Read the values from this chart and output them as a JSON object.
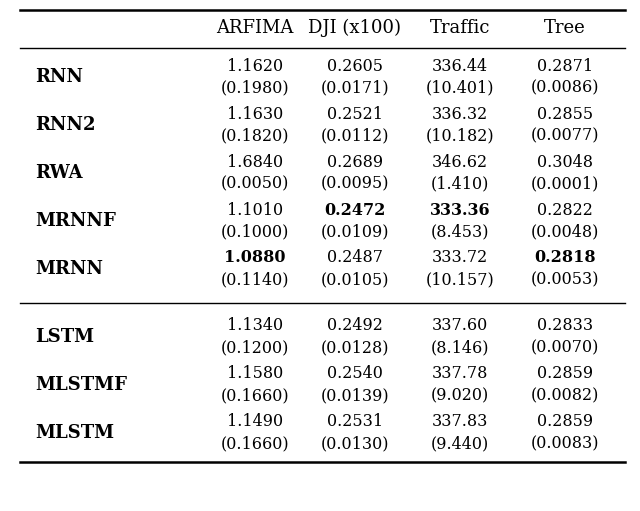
{
  "columns": [
    "ARFIMA",
    "DJI (x100)",
    "Traffic",
    "Tree"
  ],
  "rows": [
    {
      "name": "RNN",
      "values": [
        "1.1620",
        "0.2605",
        "336.44",
        "0.2871"
      ],
      "stds": [
        "(0.1980)",
        "(0.0171)",
        "(10.401)",
        "(0.0086)"
      ],
      "bold": [
        false,
        false,
        false,
        false
      ]
    },
    {
      "name": "RNN2",
      "values": [
        "1.1630",
        "0.2521",
        "336.32",
        "0.2855"
      ],
      "stds": [
        "(0.1820)",
        "(0.0112)",
        "(10.182)",
        "(0.0077)"
      ],
      "bold": [
        false,
        false,
        false,
        false
      ]
    },
    {
      "name": "RWA",
      "values": [
        "1.6840",
        "0.2689",
        "346.62",
        "0.3048"
      ],
      "stds": [
        "(0.0050)",
        "(0.0095)",
        "(1.410)",
        "(0.0001)"
      ],
      "bold": [
        false,
        false,
        false,
        false
      ]
    },
    {
      "name": "MRNNF",
      "values": [
        "1.1010",
        "0.2472",
        "333.36",
        "0.2822"
      ],
      "stds": [
        "(0.1000)",
        "(0.0109)",
        "(8.453)",
        "(0.0048)"
      ],
      "bold": [
        false,
        true,
        true,
        false
      ]
    },
    {
      "name": "MRNN",
      "values": [
        "1.0880",
        "0.2487",
        "333.72",
        "0.2818"
      ],
      "stds": [
        "(0.1140)",
        "(0.0105)",
        "(10.157)",
        "(0.0053)"
      ],
      "bold": [
        true,
        false,
        false,
        true
      ]
    },
    {
      "name": "LSTM",
      "values": [
        "1.1340",
        "0.2492",
        "337.60",
        "0.2833"
      ],
      "stds": [
        "(0.1200)",
        "(0.0128)",
        "(8.146)",
        "(0.0070)"
      ],
      "bold": [
        false,
        false,
        false,
        false
      ],
      "group_break": true
    },
    {
      "name": "MLSTMF",
      "values": [
        "1.1580",
        "0.2540",
        "337.78",
        "0.2859"
      ],
      "stds": [
        "(0.1660)",
        "(0.0139)",
        "(9.020)",
        "(0.0082)"
      ],
      "bold": [
        false,
        false,
        false,
        false
      ]
    },
    {
      "name": "MLSTM",
      "values": [
        "1.1490",
        "0.2531",
        "337.83",
        "0.2859"
      ],
      "stds": [
        "(0.1660)",
        "(0.0130)",
        "(9.440)",
        "(0.0083)"
      ],
      "bold": [
        false,
        false,
        false,
        false
      ]
    }
  ],
  "background_color": "#ffffff",
  "text_color": "#000000",
  "header_fontsize": 13,
  "cell_fontsize": 11.5,
  "row_label_fontsize": 13
}
